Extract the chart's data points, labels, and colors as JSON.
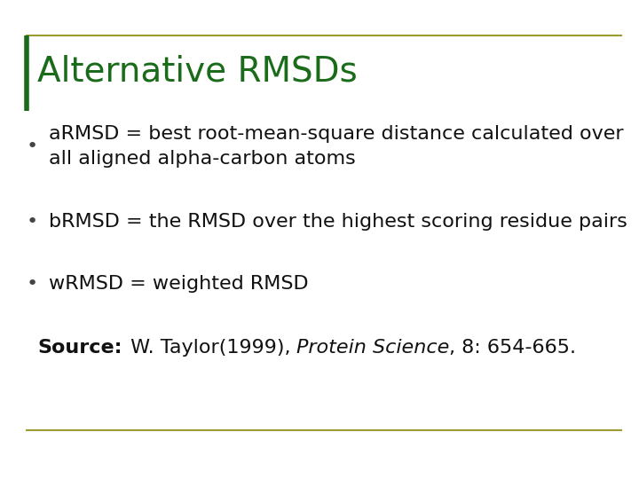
{
  "title": "Alternative RMSDs",
  "title_color": "#1a6b1a",
  "title_fontsize": 28,
  "background_color": "#ffffff",
  "top_line_color": "#9b9b30",
  "bottom_line_color": "#9b9b30",
  "left_border_color": "#1a6b1a",
  "bullet_color": "#444444",
  "bullet_char": "•",
  "bullets": [
    "aRMSD = best root-mean-square distance calculated over\nall aligned alpha-carbon atoms",
    "bRMSD = the RMSD over the highest scoring residue pairs",
    "wRMSD = weighted RMSD"
  ],
  "body_fontsize": 16,
  "source_fontsize": 16
}
